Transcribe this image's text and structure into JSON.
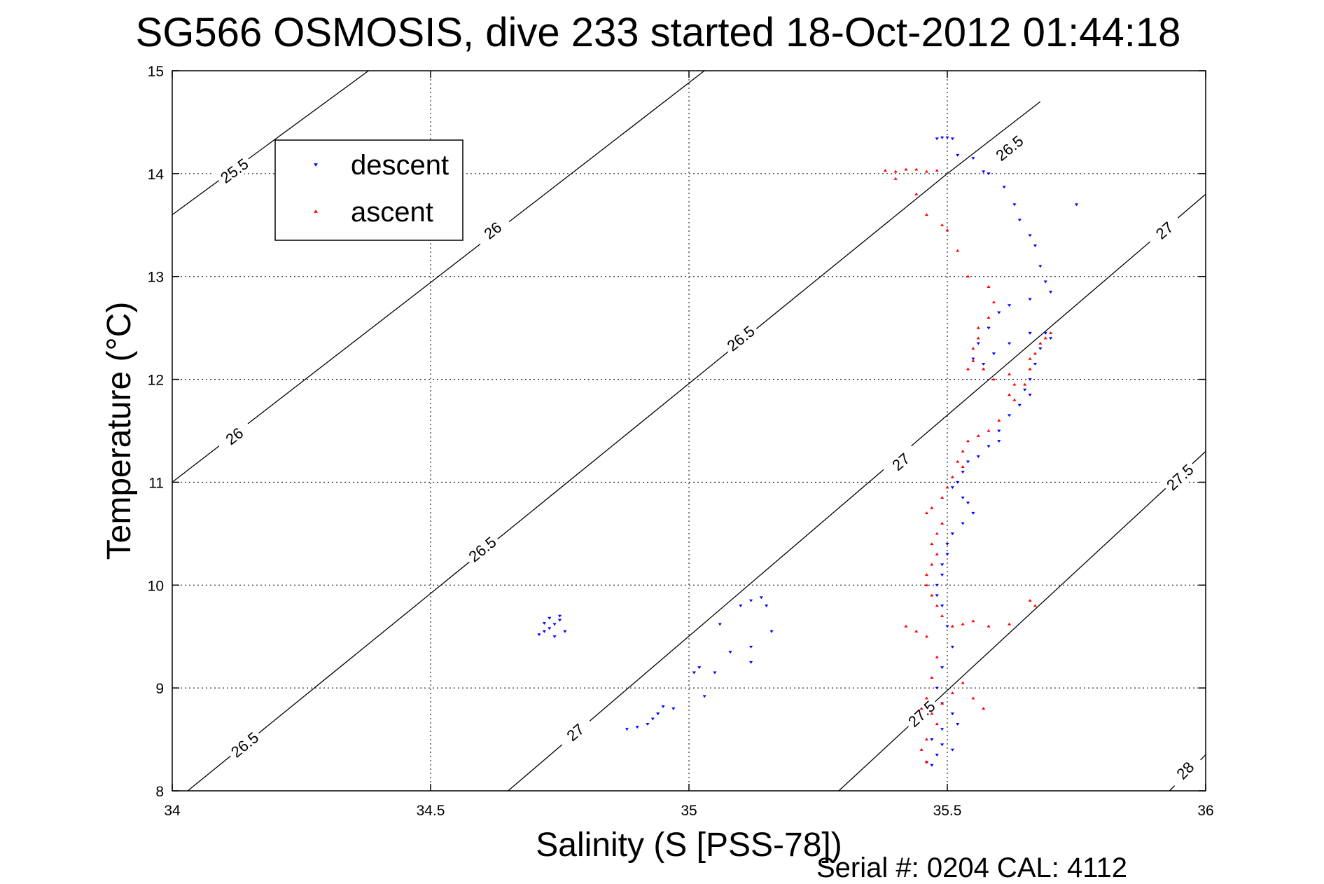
{
  "chart_data": {
    "type": "scatter",
    "title": "SG566 OSMOSIS, dive 233 started 18-Oct-2012 01:44:18",
    "xlabel": "Salinity (S [PSS-78])",
    "ylabel": "Temperature (°C)",
    "xlim": [
      34,
      36
    ],
    "ylim": [
      8,
      15
    ],
    "xticks": [
      "34",
      "34.5",
      "35",
      "35.5",
      "36"
    ],
    "yticks": [
      "8",
      "9",
      "10",
      "11",
      "12",
      "13",
      "14",
      "15"
    ],
    "grid": true,
    "legend": {
      "placement": "top-left"
    },
    "footer": "Serial #: 0204  CAL: 4112",
    "series": [
      {
        "name": "descent",
        "color": "#0000ff",
        "marker": "triangle-down",
        "points": [
          [
            35.49,
            14.35
          ],
          [
            35.5,
            14.35
          ],
          [
            35.48,
            14.34
          ],
          [
            35.51,
            14.34
          ],
          [
            35.52,
            14.18
          ],
          [
            35.57,
            14.02
          ],
          [
            35.61,
            13.87
          ],
          [
            35.63,
            13.7
          ],
          [
            35.64,
            13.55
          ],
          [
            35.66,
            13.4
          ],
          [
            35.67,
            13.3
          ],
          [
            35.68,
            13.1
          ],
          [
            35.69,
            12.95
          ],
          [
            35.7,
            12.85
          ],
          [
            35.66,
            12.78
          ],
          [
            35.62,
            12.72
          ],
          [
            35.6,
            12.65
          ],
          [
            35.58,
            12.5
          ],
          [
            35.56,
            12.35
          ],
          [
            35.55,
            12.2
          ],
          [
            35.57,
            12.15
          ],
          [
            35.59,
            12.25
          ],
          [
            35.62,
            12.35
          ],
          [
            35.66,
            12.45
          ],
          [
            35.69,
            12.45
          ],
          [
            35.7,
            12.4
          ],
          [
            35.68,
            12.3
          ],
          [
            35.67,
            12.15
          ],
          [
            35.66,
            12.0
          ],
          [
            35.65,
            11.9
          ],
          [
            35.66,
            11.85
          ],
          [
            35.64,
            11.75
          ],
          [
            35.62,
            11.65
          ],
          [
            35.6,
            11.5
          ],
          [
            35.6,
            11.4
          ],
          [
            35.58,
            11.35
          ],
          [
            35.56,
            11.25
          ],
          [
            35.54,
            11.2
          ],
          [
            35.53,
            11.1
          ],
          [
            35.52,
            11.0
          ],
          [
            35.51,
            10.95
          ],
          [
            35.53,
            10.85
          ],
          [
            35.54,
            10.8
          ],
          [
            35.55,
            10.7
          ],
          [
            35.53,
            10.6
          ],
          [
            35.51,
            10.5
          ],
          [
            35.5,
            10.4
          ],
          [
            35.5,
            10.3
          ],
          [
            35.49,
            10.2
          ],
          [
            35.49,
            10.1
          ],
          [
            35.48,
            10.0
          ],
          [
            35.48,
            9.9
          ],
          [
            35.49,
            9.8
          ],
          [
            35.5,
            9.6
          ],
          [
            35.51,
            9.4
          ],
          [
            35.49,
            9.2
          ],
          [
            35.48,
            9.0
          ],
          [
            35.49,
            8.85
          ],
          [
            35.51,
            8.75
          ],
          [
            35.52,
            8.65
          ],
          [
            35.49,
            8.6
          ],
          [
            35.47,
            8.5
          ],
          [
            35.49,
            8.45
          ],
          [
            35.51,
            8.4
          ],
          [
            35.48,
            8.35
          ],
          [
            35.46,
            8.28
          ],
          [
            35.47,
            8.25
          ],
          [
            35.75,
            13.7
          ],
          [
            35.55,
            14.15
          ],
          [
            35.58,
            14.0
          ],
          [
            34.71,
            9.52
          ],
          [
            34.72,
            9.55
          ],
          [
            34.73,
            9.58
          ],
          [
            34.74,
            9.62
          ],
          [
            34.75,
            9.66
          ],
          [
            34.75,
            9.7
          ],
          [
            34.73,
            9.68
          ],
          [
            34.76,
            9.55
          ],
          [
            34.74,
            9.5
          ],
          [
            34.72,
            9.63
          ],
          [
            34.92,
            8.65
          ],
          [
            34.94,
            8.75
          ],
          [
            34.95,
            8.82
          ],
          [
            34.97,
            8.8
          ],
          [
            34.93,
            8.7
          ],
          [
            34.9,
            8.62
          ],
          [
            34.88,
            8.6
          ],
          [
            35.02,
            9.2
          ],
          [
            35.01,
            9.15
          ],
          [
            35.05,
            9.15
          ],
          [
            35.06,
            9.62
          ],
          [
            35.1,
            9.8
          ],
          [
            35.12,
            9.85
          ],
          [
            35.14,
            9.88
          ],
          [
            35.15,
            9.8
          ],
          [
            35.16,
            9.55
          ],
          [
            35.12,
            9.4
          ],
          [
            35.08,
            9.35
          ],
          [
            35.12,
            9.25
          ],
          [
            35.03,
            8.92
          ]
        ]
      },
      {
        "name": "ascent",
        "color": "#ff0000",
        "marker": "triangle-up",
        "points": [
          [
            35.38,
            14.03
          ],
          [
            35.4,
            14.02
          ],
          [
            35.42,
            14.04
          ],
          [
            35.44,
            14.04
          ],
          [
            35.46,
            14.02
          ],
          [
            35.48,
            14.03
          ],
          [
            35.4,
            13.95
          ],
          [
            35.44,
            13.8
          ],
          [
            35.46,
            13.6
          ],
          [
            35.49,
            13.5
          ],
          [
            35.5,
            13.45
          ],
          [
            35.52,
            13.25
          ],
          [
            35.54,
            13.0
          ],
          [
            35.58,
            12.9
          ],
          [
            35.59,
            12.75
          ],
          [
            35.58,
            12.6
          ],
          [
            35.56,
            12.5
          ],
          [
            35.56,
            12.4
          ],
          [
            35.55,
            12.3
          ],
          [
            35.55,
            12.18
          ],
          [
            35.54,
            12.1
          ],
          [
            35.57,
            12.1
          ],
          [
            35.59,
            12.0
          ],
          [
            35.62,
            12.05
          ],
          [
            35.63,
            11.95
          ],
          [
            35.62,
            11.85
          ],
          [
            35.63,
            11.8
          ],
          [
            35.65,
            11.95
          ],
          [
            35.66,
            12.1
          ],
          [
            35.67,
            12.25
          ],
          [
            35.69,
            12.4
          ],
          [
            35.7,
            12.45
          ],
          [
            35.68,
            12.35
          ],
          [
            35.66,
            12.2
          ],
          [
            35.6,
            11.6
          ],
          [
            35.58,
            11.5
          ],
          [
            35.56,
            11.45
          ],
          [
            35.54,
            11.4
          ],
          [
            35.53,
            11.3
          ],
          [
            35.52,
            11.2
          ],
          [
            35.53,
            11.15
          ],
          [
            35.51,
            11.05
          ],
          [
            35.5,
            10.95
          ],
          [
            35.49,
            10.85
          ],
          [
            35.47,
            10.75
          ],
          [
            35.46,
            10.7
          ],
          [
            35.49,
            10.6
          ],
          [
            35.48,
            10.5
          ],
          [
            35.47,
            10.4
          ],
          [
            35.48,
            10.3
          ],
          [
            35.47,
            10.2
          ],
          [
            35.46,
            10.1
          ],
          [
            35.46,
            10.0
          ],
          [
            35.47,
            9.9
          ],
          [
            35.48,
            9.8
          ],
          [
            35.49,
            9.7
          ],
          [
            35.51,
            9.6
          ],
          [
            35.53,
            9.62
          ],
          [
            35.55,
            9.65
          ],
          [
            35.58,
            9.6
          ],
          [
            35.62,
            9.62
          ],
          [
            35.66,
            9.85
          ],
          [
            35.67,
            9.8
          ],
          [
            35.42,
            9.6
          ],
          [
            35.44,
            9.55
          ],
          [
            35.46,
            9.5
          ],
          [
            35.48,
            9.3
          ],
          [
            35.47,
            9.1
          ],
          [
            35.46,
            8.9
          ],
          [
            35.45,
            8.8
          ],
          [
            35.47,
            8.75
          ],
          [
            35.49,
            8.85
          ],
          [
            35.51,
            8.95
          ],
          [
            35.53,
            9.05
          ],
          [
            35.55,
            8.9
          ],
          [
            35.57,
            8.8
          ],
          [
            35.48,
            8.65
          ],
          [
            35.46,
            8.5
          ],
          [
            35.45,
            8.4
          ],
          [
            35.46,
            8.28
          ]
        ]
      }
    ],
    "contours": [
      {
        "label": "25.5",
        "lines": [
          [
            [
              34.0,
              13.6
            ],
            [
              34.38,
              15.0
            ]
          ]
        ],
        "labels_at": [
          [
            34.12,
            14.03
          ]
        ]
      },
      {
        "label": "26",
        "lines": [
          [
            [
              34.0,
              11.0
            ],
            [
              35.03,
              15.0
            ]
          ]
        ],
        "labels_at": [
          [
            34.12,
            11.45
          ],
          [
            34.62,
            13.45
          ]
        ]
      },
      {
        "label": "26.5",
        "lines": [
          [
            [
              34.03,
              8.0
            ],
            [
              35.5,
              14.0
            ],
            [
              35.68,
              14.7
            ]
          ]
        ],
        "labels_at": [
          [
            34.14,
            8.45
          ],
          [
            34.6,
            10.35
          ],
          [
            35.1,
            12.4
          ],
          [
            35.62,
            14.25
          ]
        ]
      },
      {
        "label": "27",
        "lines": [
          [
            [
              34.65,
              8.0
            ],
            [
              36.0,
              13.8
            ]
          ]
        ],
        "labels_at": [
          [
            34.78,
            8.57
          ],
          [
            35.41,
            11.2
          ],
          [
            35.92,
            13.45
          ]
        ]
      },
      {
        "label": "27.5",
        "lines": [
          [
            [
              35.29,
              8.0
            ],
            [
              36.0,
              11.3
            ]
          ]
        ],
        "labels_at": [
          [
            35.45,
            8.75
          ],
          [
            35.95,
            11.05
          ]
        ]
      },
      {
        "label": "28",
        "lines": [
          [
            [
              35.93,
              8.0
            ],
            [
              36.0,
              8.35
            ]
          ]
        ],
        "labels_at": [
          [
            35.96,
            8.2
          ]
        ]
      }
    ]
  }
}
